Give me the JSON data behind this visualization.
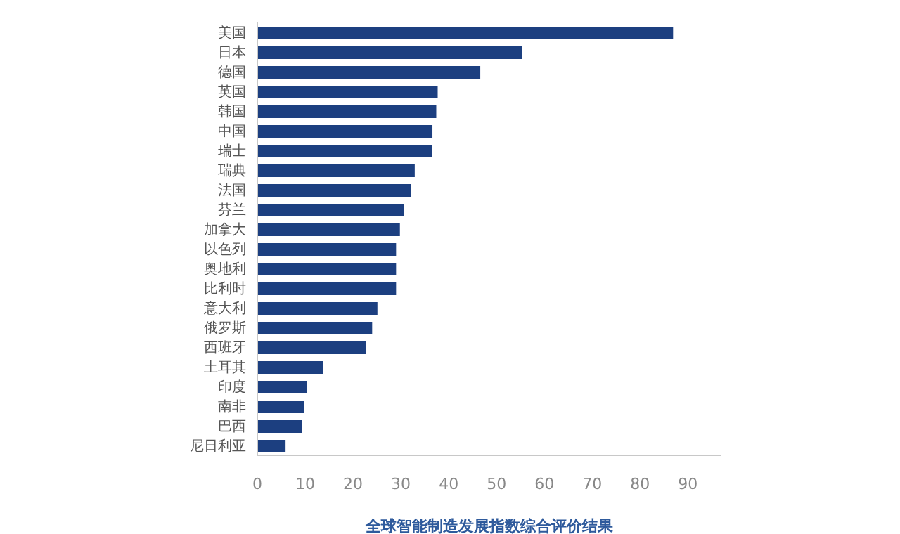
{
  "chart_data": {
    "type": "bar",
    "orientation": "horizontal",
    "xlabel": "全球智能制造发展指数综合评价结果",
    "categories": [
      "美国",
      "日本",
      "德国",
      "英国",
      "韩国",
      "中国",
      "瑞士",
      "瑞典",
      "法国",
      "芬兰",
      "加拿大",
      "以色列",
      "奥地利",
      "比利时",
      "意大利",
      "俄罗斯",
      "西班牙",
      "土耳其",
      "印度",
      "南非",
      "巴西",
      "尼日利亚"
    ],
    "values": [
      86.9,
      55.4,
      46.6,
      37.7,
      37.4,
      36.6,
      36.5,
      32.9,
      32.1,
      30.6,
      29.8,
      29.0,
      29.0,
      29.0,
      25.1,
      24.0,
      22.7,
      13.8,
      10.4,
      9.8,
      9.3,
      5.9
    ],
    "color": "#1c3f80",
    "xlim": [
      0,
      97
    ],
    "xticks": [
      0,
      10,
      20,
      30,
      40,
      50,
      60,
      70,
      80,
      90
    ],
    "grid": false,
    "legend": false
  }
}
